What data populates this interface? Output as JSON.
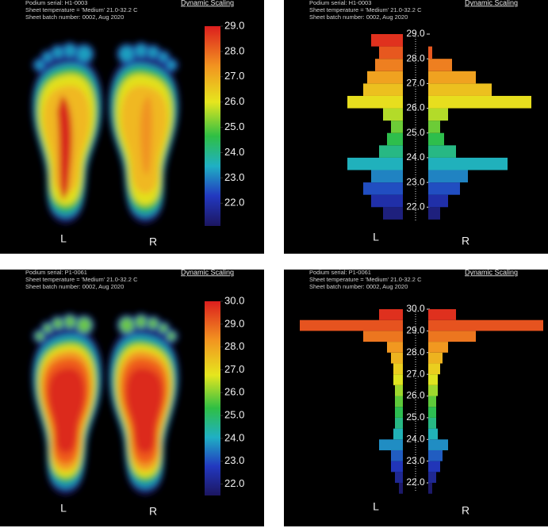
{
  "panels": [
    {
      "header": {
        "serial": "Podium serial: H1-0003",
        "sheet_temperature": "Sheet temperature = 'Medium' 21.0-32.2 C",
        "batch": "Sheet batch number: 0002, Aug 2020",
        "scaling": "Dynamic Scaling"
      },
      "chart_data": {
        "type": "thermal",
        "scale_lim": [
          21.1,
          29.0
        ],
        "scale_ticks": [
          {
            "value": 22,
            "label": "22.0"
          },
          {
            "value": 23,
            "label": "23.0"
          },
          {
            "value": 24,
            "label": "24.0"
          },
          {
            "value": 25,
            "label": "25.0"
          },
          {
            "value": 26,
            "label": "26.0"
          },
          {
            "value": 27,
            "label": "27.0"
          },
          {
            "value": 28,
            "label": "28.0"
          },
          {
            "value": 29,
            "label": "29.0"
          }
        ],
        "labels": [
          "L",
          "R"
        ]
      }
    },
    {
      "header": {
        "serial": "Podium serial: H1-0003",
        "sheet_temperature": "Sheet temperature = 'Medium' 21.0-32.2 C",
        "batch": "Sheet batch number: 0002, Aug 2020",
        "scaling": "Dynamic Scaling"
      },
      "chart_data": {
        "type": "histogram",
        "ylim": [
          21.4,
          29.0
        ],
        "yticks": [
          {
            "value": 22,
            "label": "22.0"
          },
          {
            "value": 23,
            "label": "23.0"
          },
          {
            "value": 24,
            "label": "24.0"
          },
          {
            "value": 25,
            "label": "25.0"
          },
          {
            "value": 26,
            "label": "26.0"
          },
          {
            "value": 27,
            "label": "27.0"
          },
          {
            "value": 28,
            "label": "28.0"
          },
          {
            "value": 29,
            "label": "29.0"
          }
        ],
        "bins": [
          21.5,
          22.0,
          22.5,
          23.0,
          23.5,
          24.0,
          24.5,
          25.0,
          25.5,
          26.0,
          26.5,
          27.0,
          27.5,
          28.0,
          28.5,
          29.0
        ],
        "left_counts": [
          25,
          40,
          50,
          40,
          70,
          30,
          20,
          15,
          25,
          70,
          50,
          45,
          35,
          30,
          40
        ],
        "right_counts": [
          15,
          25,
          40,
          50,
          100,
          35,
          20,
          15,
          25,
          130,
          80,
          60,
          30,
          5,
          0
        ],
        "labels": [
          "L",
          "R"
        ]
      }
    },
    {
      "header": {
        "serial": "Podium serial: P1-0061",
        "sheet_temperature": "Sheet temperature = 'Medium' 21.0-32.2 C",
        "batch": "Sheet batch number: 0002, Aug 2020",
        "scaling": "Dynamic Scaling"
      },
      "chart_data": {
        "type": "thermal",
        "scale_lim": [
          21.5,
          30.0
        ],
        "scale_ticks": [
          {
            "value": 22,
            "label": "22.0"
          },
          {
            "value": 23,
            "label": "23.0"
          },
          {
            "value": 24,
            "label": "24.0"
          },
          {
            "value": 25,
            "label": "25.0"
          },
          {
            "value": 26,
            "label": "26.0"
          },
          {
            "value": 27,
            "label": "27.0"
          },
          {
            "value": 28,
            "label": "28.0"
          },
          {
            "value": 29,
            "label": "29.0"
          },
          {
            "value": 30,
            "label": "30.0"
          }
        ],
        "labels": [
          "L",
          "R"
        ]
      }
    },
    {
      "header": {
        "serial": "Podium serial: P1-0061",
        "sheet_temperature": "Sheet temperature = 'Medium' 21.0-32.2 C",
        "batch": "Sheet batch number: 0002, Aug 2020",
        "scaling": "Dynamic Scaling"
      },
      "chart_data": {
        "type": "histogram",
        "ylim": [
          21.6,
          30.0
        ],
        "yticks": [
          {
            "value": 22,
            "label": "22.0"
          },
          {
            "value": 23,
            "label": "23.0"
          },
          {
            "value": 24,
            "label": "24.0"
          },
          {
            "value": 25,
            "label": "25.0"
          },
          {
            "value": 26,
            "label": "26.0"
          },
          {
            "value": 27,
            "label": "27.0"
          },
          {
            "value": 28,
            "label": "28.0"
          },
          {
            "value": 29,
            "label": "29.0"
          },
          {
            "value": 30,
            "label": "30.0"
          }
        ],
        "bins": [
          21.5,
          22.0,
          22.5,
          23.0,
          23.5,
          24.0,
          24.5,
          25.0,
          25.5,
          26.0,
          26.5,
          27.0,
          27.5,
          28.0,
          28.5,
          29.0,
          29.5,
          30.0
        ],
        "left_counts": [
          5,
          10,
          15,
          15,
          30,
          12,
          10,
          10,
          10,
          10,
          12,
          12,
          15,
          20,
          50,
          130,
          30
        ],
        "right_counts": [
          5,
          10,
          15,
          18,
          25,
          12,
          10,
          10,
          10,
          12,
          12,
          15,
          18,
          25,
          60,
          145,
          35
        ],
        "labels": [
          "L",
          "R"
        ]
      }
    }
  ]
}
